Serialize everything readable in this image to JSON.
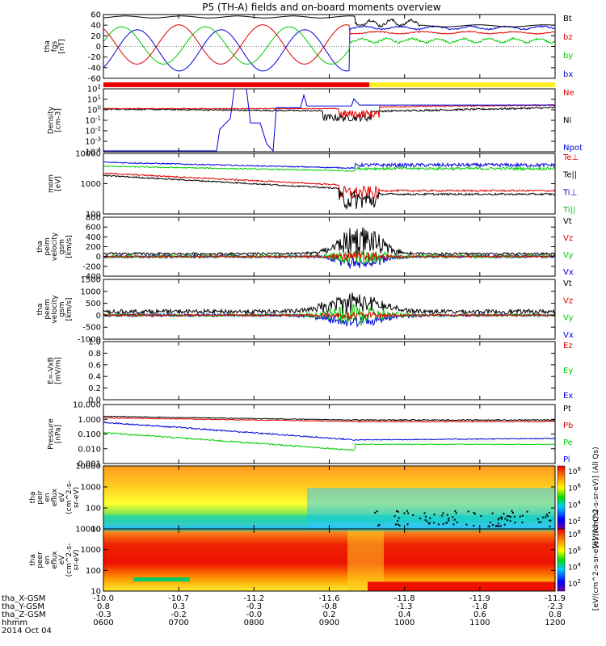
{
  "title": "P5 (TH-A) fields and on-board moments overview",
  "colors": {
    "black": "#000000",
    "red": "#dd0000",
    "green": "#00cc00",
    "blue": "#0000dd",
    "yellow": "#ffee22"
  },
  "chart_data": {
    "type": "line",
    "x_time_ticks": [
      "0600",
      "0700",
      "0800",
      "0900",
      "1000",
      "1100",
      "1200"
    ],
    "x_range_hours": [
      6,
      12
    ],
    "panels": [
      {
        "id": "fgs",
        "ylabel": [
          "tha",
          "fgs",
          "[nT]"
        ],
        "yticks": [
          "60",
          "40",
          "20",
          "0",
          "-20",
          "-40",
          "-60"
        ],
        "ylim": [
          -65,
          65
        ],
        "legend": [
          "Bt",
          "bz",
          "by",
          "bx"
        ],
        "legend_colors": [
          "black",
          "red",
          "green",
          "blue"
        ]
      },
      {
        "id": "density",
        "ylabel": [
          "Density",
          "[cm-3]"
        ],
        "yticks": [
          "10^2",
          "10^1",
          "10^0",
          "10^-1",
          "10^-2",
          "10^-3",
          "10^-4"
        ],
        "scale": "log",
        "legend": [
          "Ne",
          "Ni",
          "Npot"
        ],
        "legend_colors": [
          "red",
          "black",
          "blue"
        ]
      },
      {
        "id": "temp",
        "ylabel": [
          "mom",
          "[eV]"
        ],
        "yticks": [
          "10000",
          "1000",
          "100"
        ],
        "scale": "log",
        "legend": [
          "Te⊥",
          "Te||",
          "Ti⊥",
          "Ti||"
        ],
        "legend_colors": [
          "red",
          "black",
          "blue",
          "green"
        ]
      },
      {
        "id": "peim",
        "ylabel": [
          "tha",
          "peim",
          "velocity",
          "gsm",
          "[km/s]"
        ],
        "yticks": [
          "800",
          "600",
          "400",
          "200",
          "0",
          "-200",
          "-400"
        ],
        "ylim": [
          -400,
          800
        ],
        "legend": [
          "Vt",
          "Vz",
          "Vy",
          "Vx"
        ],
        "legend_colors": [
          "black",
          "red",
          "green",
          "blue"
        ]
      },
      {
        "id": "peem",
        "ylabel": [
          "tha",
          "peem",
          "velocity",
          "gsm",
          "[km/s]"
        ],
        "yticks": [
          "1500",
          "1000",
          "500",
          "0",
          "-500",
          "-1000"
        ],
        "ylim": [
          -1000,
          1500
        ],
        "legend": [
          "Vt",
          "Vz",
          "Vy",
          "Vx"
        ],
        "legend_colors": [
          "black",
          "red",
          "green",
          "blue"
        ]
      },
      {
        "id": "efield",
        "ylabel": [
          "E=-VxB",
          "[mV/m]"
        ],
        "yticks": [
          "1.0",
          "0.8",
          "0.6",
          "0.4",
          "0.2",
          "0.0"
        ],
        "ylim": [
          0,
          1
        ],
        "legend": [
          "Ez",
          "Ey",
          "Ex"
        ],
        "legend_colors": [
          "red",
          "green",
          "blue"
        ]
      },
      {
        "id": "pressure",
        "ylabel": [
          "Pressure",
          "[nPa]"
        ],
        "yticks": [
          "10.000",
          "1.000",
          "0.100",
          "0.010",
          "0.001"
        ],
        "scale": "log",
        "legend": [
          "Pt",
          "Pb",
          "Pe",
          "Pi"
        ],
        "legend_colors": [
          "black",
          "red",
          "green",
          "blue"
        ]
      },
      {
        "id": "peir",
        "ylabel": [
          "tha",
          "peir",
          "en",
          "eflux",
          "eV",
          "(cm^2-s-",
          "sr-eV)"
        ],
        "yticks": [
          "10000",
          "1000",
          "100",
          "10"
        ],
        "colorbar_label": "[eV/(cm^2-s-sr-eV)] (All Qs)",
        "colorbar_ticks": [
          "10^8",
          "10^6",
          "10^4",
          "10^2"
        ]
      },
      {
        "id": "peer",
        "ylabel": [
          "tha",
          "peer",
          "en",
          "eflux",
          "eV",
          "(cm^2-s-",
          "sr-eV)"
        ],
        "yticks": [
          "10000",
          "1000",
          "100",
          "10"
        ],
        "colorbar_label": "[eV/(cm^2-s-sr-eV)] (All Qs)",
        "colorbar_ticks": [
          "10^8",
          "10^6",
          "10^4",
          "10^2"
        ]
      }
    ],
    "position_rows": [
      {
        "label": "tha_X-GSM",
        "values": [
          "-10.0",
          "-10.7",
          "-11.2",
          "-11.6",
          "-11.8",
          "-11.9",
          "-11.9"
        ]
      },
      {
        "label": "tha_Y-GSM",
        "values": [
          "0.8",
          "0.3",
          "-0.3",
          "-0.8",
          "-1.3",
          "-1.8",
          "-2.3"
        ]
      },
      {
        "label": "tha_Z-GSM",
        "values": [
          "-0.3",
          "-0.2",
          "-0.0",
          "0.2",
          "0.4",
          "0.6",
          "0.8"
        ]
      },
      {
        "label": "hhmm",
        "values": [
          "0600",
          "0700",
          "0800",
          "0900",
          "1000",
          "1100",
          "1200"
        ]
      }
    ],
    "date_label": "2014 Oct 04"
  }
}
